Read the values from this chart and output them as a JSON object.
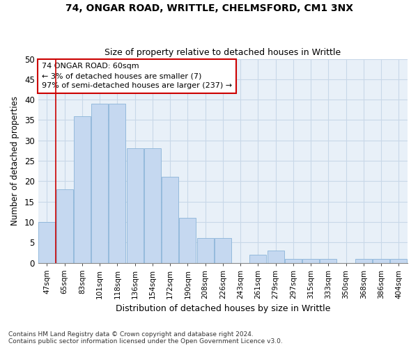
{
  "title1": "74, ONGAR ROAD, WRITTLE, CHELMSFORD, CM1 3NX",
  "title2": "Size of property relative to detached houses in Writtle",
  "xlabel": "Distribution of detached houses by size in Writtle",
  "ylabel": "Number of detached properties",
  "footnote1": "Contains HM Land Registry data © Crown copyright and database right 2024.",
  "footnote2": "Contains public sector information licensed under the Open Government Licence v3.0.",
  "categories": [
    "47sqm",
    "65sqm",
    "83sqm",
    "101sqm",
    "118sqm",
    "136sqm",
    "154sqm",
    "172sqm",
    "190sqm",
    "208sqm",
    "226sqm",
    "243sqm",
    "261sqm",
    "279sqm",
    "297sqm",
    "315sqm",
    "333sqm",
    "350sqm",
    "368sqm",
    "386sqm",
    "404sqm"
  ],
  "values": [
    10,
    18,
    36,
    39,
    39,
    28,
    28,
    21,
    11,
    6,
    6,
    0,
    2,
    3,
    1,
    1,
    1,
    0,
    1,
    1,
    1
  ],
  "bar_color": "#c5d8f0",
  "bar_edge_color": "#8ab4d8",
  "grid_color": "#c8d8e8",
  "background_color": "#e8f0f8",
  "annotation_box_text": "74 ONGAR ROAD: 60sqm\n← 3% of detached houses are smaller (7)\n97% of semi-detached houses are larger (237) →",
  "annotation_box_color": "#cc0000",
  "ylim": [
    0,
    50
  ],
  "yticks": [
    0,
    5,
    10,
    15,
    20,
    25,
    30,
    35,
    40,
    45,
    50
  ],
  "red_line_index": 1
}
